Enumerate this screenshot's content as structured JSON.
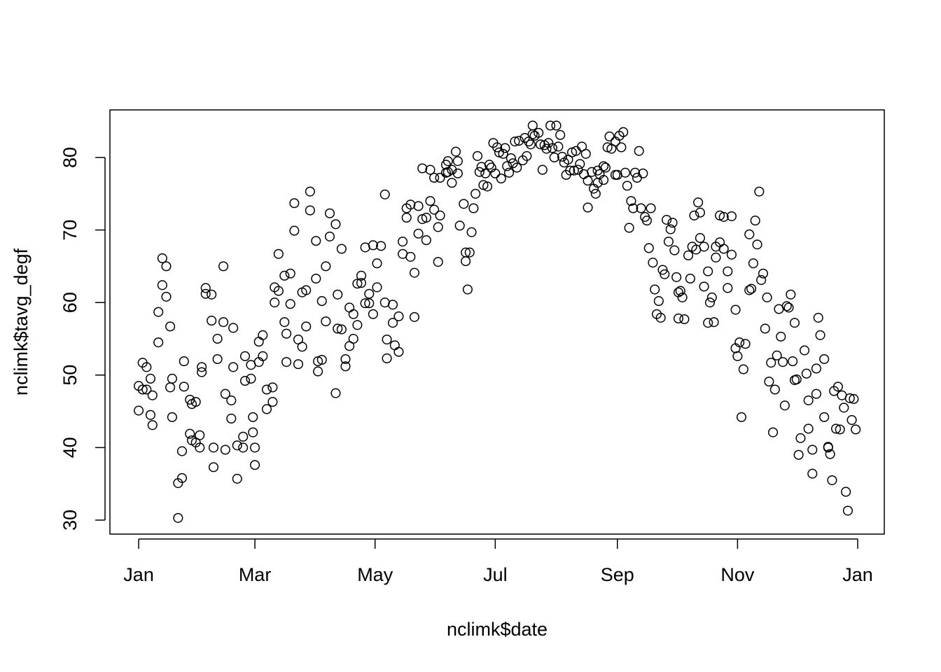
{
  "chart_data": {
    "type": "scatter",
    "x_label": "nclimk$date",
    "y_label": "nclimk$tavg_degf",
    "color": "#000000",
    "xlim": [
      -14.6,
      378.5
    ],
    "ylim": [
      28.07,
      86.56
    ],
    "xticks": [
      {
        "value": 0,
        "label": "Jan"
      },
      {
        "value": 59,
        "label": "Mar"
      },
      {
        "value": 120,
        "label": "May"
      },
      {
        "value": 181,
        "label": "Jul"
      },
      {
        "value": 243,
        "label": "Sep"
      },
      {
        "value": 304,
        "label": "Nov"
      },
      {
        "value": 365,
        "label": "Jan"
      }
    ],
    "yticks": [
      30,
      40,
      50,
      60,
      70,
      80
    ],
    "x": [
      0,
      0,
      2,
      2,
      4,
      4,
      6,
      6,
      7,
      7,
      10,
      10,
      12,
      12,
      14,
      14,
      16,
      16,
      17,
      17,
      20,
      20,
      22,
      22,
      23,
      23,
      26,
      26,
      27,
      27,
      29,
      29,
      31,
      31,
      32,
      32,
      34,
      34,
      37,
      37,
      38,
      38,
      40,
      40,
      43,
      43,
      44,
      44,
      47,
      47,
      48,
      48,
      50,
      50,
      53,
      53,
      54,
      54,
      57,
      57,
      58,
      58,
      59,
      59,
      61,
      61,
      63,
      63,
      65,
      65,
      68,
      68,
      69,
      69,
      71,
      71,
      74,
      74,
      75,
      75,
      77,
      77,
      79,
      79,
      81,
      81,
      83,
      83,
      85,
      85,
      87,
      87,
      90,
      90,
      91,
      91,
      93,
      93,
      95,
      95,
      97,
      97,
      100,
      100,
      101,
      101,
      103,
      103,
      105,
      105,
      107,
      107,
      109,
      109,
      111,
      111,
      113,
      113,
      115,
      115,
      117,
      117,
      119,
      119,
      121,
      121,
      123,
      125,
      125,
      126,
      126,
      129,
      129,
      130,
      132,
      132,
      134,
      134,
      136,
      136,
      138,
      138,
      140,
      140,
      142,
      142,
      144,
      144,
      146,
      146,
      148,
      148,
      150,
      150,
      152,
      152,
      153,
      153,
      156,
      156,
      157,
      157,
      159,
      159,
      161,
      162,
      162,
      163,
      165,
      166,
      166,
      167,
      168,
      169,
      170,
      171,
      172,
      173,
      174,
      175,
      176,
      177,
      178,
      179,
      180,
      181,
      182,
      183,
      184,
      185,
      186,
      187,
      188,
      189,
      190,
      191,
      192,
      193,
      195,
      196,
      197,
      198,
      199,
      200,
      200,
      201,
      203,
      204,
      205,
      206,
      207,
      208,
      209,
      210,
      211,
      212,
      213,
      214,
      215,
      216,
      217,
      218,
      219,
      220,
      221,
      222,
      223,
      224,
      225,
      226,
      227,
      228,
      228,
      230,
      231,
      232,
      233,
      233,
      234,
      236,
      236,
      237,
      238,
      239,
      240,
      242,
      242,
      243,
      244,
      245,
      246,
      247,
      248,
      249,
      250,
      251,
      252,
      253,
      254,
      255,
      256,
      257,
      258,
      259,
      260,
      261,
      262,
      263,
      264,
      265,
      266,
      267,
      268,
      269,
      270,
      271,
      272,
      273,
      274,
      274,
      275,
      276,
      277,
      279,
      280,
      281,
      282,
      283,
      284,
      285,
      285,
      287,
      287,
      289,
      289,
      290,
      291,
      292,
      293,
      293,
      295,
      295,
      297,
      297,
      299,
      299,
      301,
      301,
      303,
      303,
      304,
      305,
      306,
      307,
      308,
      310,
      310,
      311,
      312,
      313,
      314,
      315,
      316,
      317,
      318,
      319,
      320,
      321,
      322,
      323,
      324,
      325,
      326,
      327,
      328,
      329,
      330,
      331,
      332,
      333,
      333,
      334,
      335,
      336,
      338,
      339,
      340,
      340,
      342,
      342,
      344,
      344,
      345,
      346,
      348,
      348,
      350,
      350,
      351,
      352,
      353,
      354,
      355,
      356,
      357,
      358,
      359,
      360,
      361,
      362,
      363,
      364
    ],
    "values": [
      48.5,
      45.1,
      51.7,
      48.0,
      51.1,
      48.0,
      49.5,
      44.5,
      47.2,
      43.1,
      54.5,
      58.7,
      66.1,
      62.4,
      65.0,
      60.8,
      56.7,
      48.3,
      49.5,
      44.2,
      35.1,
      30.3,
      39.5,
      35.8,
      51.9,
      48.4,
      46.6,
      41.9,
      46.0,
      41.0,
      46.3,
      40.7,
      41.7,
      40.0,
      51.1,
      50.4,
      62.0,
      61.2,
      61.1,
      57.5,
      40.0,
      37.3,
      55.0,
      52.2,
      65.0,
      57.3,
      47.4,
      39.7,
      46.5,
      44.0,
      56.5,
      51.1,
      40.3,
      35.7,
      41.5,
      40.0,
      52.6,
      49.2,
      49.5,
      51.4,
      44.2,
      42.1,
      40.0,
      37.6,
      54.6,
      51.8,
      55.5,
      52.6,
      48.0,
      45.3,
      48.3,
      46.3,
      62.1,
      60.0,
      66.7,
      61.6,
      63.7,
      57.3,
      55.7,
      51.8,
      64.0,
      59.8,
      73.7,
      69.9,
      54.9,
      51.5,
      61.4,
      53.9,
      61.7,
      56.7,
      75.3,
      72.7,
      68.5,
      63.3,
      51.9,
      50.5,
      60.2,
      52.1,
      65.0,
      57.4,
      72.3,
      69.1,
      70.8,
      47.5,
      61.1,
      56.4,
      67.4,
      56.3,
      52.2,
      51.2,
      59.3,
      54.0,
      58.4,
      55.0,
      62.6,
      56.9,
      62.7,
      63.7,
      59.9,
      67.6,
      59.9,
      61.2,
      67.9,
      58.4,
      62.1,
      65.4,
      67.8,
      74.9,
      60.0,
      54.9,
      52.3,
      57.2,
      59.7,
      54.1,
      53.2,
      58.1,
      68.4,
      66.7,
      73.0,
      71.7,
      73.5,
      66.3,
      64.1,
      58.0,
      73.3,
      69.5,
      78.5,
      71.5,
      71.7,
      68.6,
      78.3,
      74.0,
      77.2,
      72.8,
      65.6,
      70.4,
      72.0,
      77.2,
      77.9,
      79.0,
      79.5,
      78.0,
      76.5,
      78.3,
      80.8,
      79.5,
      77.8,
      70.6,
      73.6,
      66.9,
      65.7,
      61.8,
      66.9,
      69.7,
      73.0,
      75.0,
      80.2,
      78.0,
      78.7,
      76.2,
      77.8,
      76.0,
      79.0,
      78.6,
      82.0,
      77.8,
      81.4,
      80.7,
      77.1,
      80.5,
      81.3,
      78.8,
      77.9,
      79.9,
      79.2,
      82.2,
      78.6,
      82.3,
      79.6,
      82.7,
      80.2,
      82.2,
      81.8,
      83.2,
      84.4,
      83.0,
      83.4,
      81.8,
      78.3,
      81.7,
      81.2,
      82.0,
      84.4,
      81.3,
      80.0,
      84.4,
      81.5,
      83.1,
      80.1,
      79.3,
      77.6,
      79.7,
      78.2,
      80.7,
      78.2,
      80.9,
      78.3,
      79.1,
      81.5,
      77.7,
      80.5,
      76.8,
      73.1,
      78.0,
      75.7,
      75.0,
      78.2,
      76.5,
      77.7,
      76.9,
      78.8,
      78.6,
      81.4,
      82.9,
      81.2,
      82.2,
      77.6,
      77.6,
      83.0,
      81.4,
      83.5,
      77.9,
      76.1,
      70.3,
      74.0,
      73.0,
      77.9,
      77.2,
      80.9,
      73.0,
      77.8,
      71.8,
      71.3,
      67.5,
      73.0,
      65.5,
      61.8,
      58.4,
      60.2,
      57.9,
      64.5,
      63.9,
      71.4,
      68.4,
      70.1,
      71.0,
      67.2,
      63.5,
      61.4,
      57.8,
      61.6,
      60.7,
      57.7,
      66.5,
      63.3,
      67.7,
      72.0,
      67.3,
      73.8,
      72.4,
      68.9,
      67.7,
      62.2,
      64.3,
      57.2,
      60.0,
      60.7,
      57.3,
      66.2,
      67.7,
      68.3,
      72.0,
      71.8,
      67.4,
      64.3,
      62.0,
      66.6,
      71.9,
      59.0,
      53.7,
      52.6,
      54.5,
      44.2,
      50.8,
      54.3,
      61.7,
      69.4,
      61.9,
      65.4,
      71.3,
      68.0,
      75.3,
      63.1,
      64.0,
      56.4,
      60.7,
      49.1,
      51.7,
      42.1,
      48.0,
      52.7,
      59.1,
      55.3,
      51.8,
      45.8,
      59.5,
      59.3,
      61.1,
      51.9,
      57.2,
      49.3,
      49.4,
      39.0,
      41.3,
      53.4,
      50.2,
      42.6,
      46.5,
      39.7,
      36.4,
      50.9,
      47.4,
      57.9,
      55.5,
      52.2,
      44.2,
      40.1,
      40.0,
      39.1,
      35.5,
      47.8,
      42.6,
      48.4,
      42.5,
      47.2,
      45.5,
      33.9,
      31.3,
      46.8,
      43.8,
      46.7,
      42.5
    ]
  }
}
